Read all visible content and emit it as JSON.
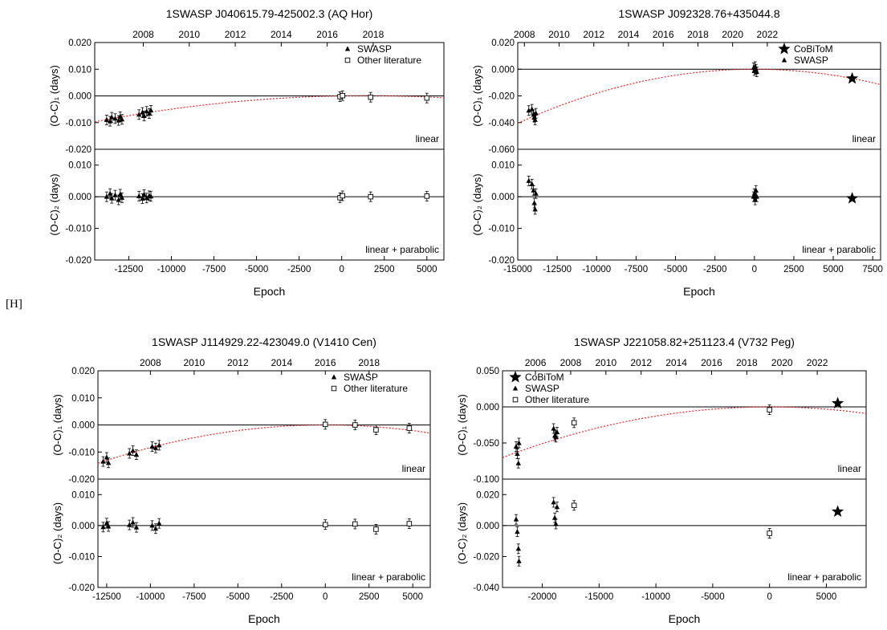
{
  "page": {
    "bracket_label": "[H]"
  },
  "colors": {
    "fit_curve": "#e8262a",
    "axis": "#000000",
    "background": "#ffffff"
  },
  "chart_data": [
    {
      "type": "scatter",
      "title": "1SWASP J040615.79-425002.3   (AQ Hor)",
      "xlabel": "Epoch",
      "xlim": [
        -14500,
        6000
      ],
      "x_ticks": [
        "-12500",
        "-10000",
        "-7500",
        "-5000",
        "-2500",
        "0",
        "2500",
        "5000"
      ],
      "x_tick_values": [
        -12500,
        -10000,
        -7500,
        -5000,
        -2500,
        0,
        2500,
        5000
      ],
      "top_axis_years": [
        "2008",
        "2010",
        "2012",
        "2014",
        "2016",
        "2018"
      ],
      "top_axis_year_epochs": [
        -11650,
        -8950,
        -6250,
        -3550,
        -850,
        1850
      ],
      "legend": [
        "SWASP",
        "Other literature"
      ],
      "legend_symbols": [
        "triangle",
        "square"
      ],
      "legend_position": "top-right",
      "top_panel": {
        "ylabel": "(O-C)₁ (days)",
        "ylim": [
          -0.02,
          0.02
        ],
        "y_ticks": [
          "-0.020",
          "-0.010",
          "0.000",
          "0.010",
          "0.020"
        ],
        "y_tick_values": [
          -0.02,
          -0.01,
          0.0,
          0.01,
          0.02
        ],
        "label": "linear",
        "fit": {
          "a": -3.86e-11,
          "b": 1.1e-07,
          "c": 0.0
        },
        "series": [
          {
            "name": "SWASP",
            "x": [
              -13800,
              -13600,
              -13500,
              -13300,
              -13100,
              -13000,
              -12900,
              -11900,
              -11700,
              -11600,
              -11450,
              -11300,
              -11200
            ],
            "y": [
              -0.009,
              -0.0095,
              -0.008,
              -0.0085,
              -0.0092,
              -0.0078,
              -0.0088,
              -0.007,
              -0.0062,
              -0.0075,
              -0.0058,
              -0.0066,
              -0.0054
            ]
          },
          {
            "name": "Other literature",
            "x": [
              -100,
              50,
              1700,
              5000
            ],
            "y": [
              -0.0003,
              0.0001,
              -0.0005,
              -0.0008
            ]
          }
        ]
      },
      "bottom_panel": {
        "ylabel": "(O-C)₂ (days)",
        "ylim": [
          -0.02,
          0.015
        ],
        "y_ticks": [
          "-0.020",
          "-0.010",
          "0.000",
          "0.010"
        ],
        "y_tick_values": [
          -0.02,
          -0.01,
          0.0,
          0.01
        ],
        "label": "linear + parabolic",
        "series": [
          {
            "name": "SWASP",
            "x": [
              -13800,
              -13600,
              -13500,
              -13300,
              -13100,
              -13000,
              -12900,
              -11900,
              -11700,
              -11600,
              -11450,
              -11300,
              -11200
            ],
            "y": [
              0.0,
              0.001,
              -0.0005,
              0.0005,
              -0.001,
              0.0008,
              -0.0003,
              0.0002,
              -0.0006,
              0.0007,
              -0.0004,
              0.0003,
              0.0001
            ]
          },
          {
            "name": "Other literature",
            "x": [
              -100,
              50,
              1700,
              5000
            ],
            "y": [
              -0.0003,
              0.0003,
              0.0,
              0.0002
            ]
          }
        ]
      }
    },
    {
      "type": "scatter",
      "title": "1SWASP J092328.76+435044.8",
      "xlabel": "Epoch",
      "xlim": [
        -15000,
        8000
      ],
      "x_ticks": [
        "-15000",
        "-12500",
        "-10000",
        "-7500",
        "-5000",
        "-2500",
        "0",
        "2500",
        "5000",
        "7500"
      ],
      "x_tick_values": [
        -15000,
        -12500,
        -10000,
        -7500,
        -5000,
        -2500,
        0,
        2500,
        5000,
        7500
      ],
      "top_axis_years": [
        "2008",
        "2010",
        "2012",
        "2014",
        "2016",
        "2018",
        "2020",
        "2022"
      ],
      "top_axis_year_epochs": [
        -14580,
        -12380,
        -10180,
        -7980,
        -5780,
        -3580,
        -1380,
        820
      ],
      "legend": [
        "CoBiToM",
        "SWASP"
      ],
      "legend_symbols": [
        "star",
        "triangle"
      ],
      "legend_position": "top-right",
      "top_panel": {
        "ylabel": "(O-C)₁ (days)",
        "ylim": [
          -0.06,
          0.02
        ],
        "y_ticks": [
          "-0.060",
          "-0.040",
          "-0.020",
          "0.000",
          "0.020"
        ],
        "y_tick_values": [
          -0.06,
          -0.04,
          -0.02,
          0.0,
          0.02
        ],
        "label": "linear",
        "fit": {
          "a": -1.8e-10,
          "b": 0.0,
          "c": 0.0
        },
        "series": [
          {
            "name": "CoBiToM",
            "x": [
              6200
            ],
            "y": [
              -0.007
            ]
          },
          {
            "name": "SWASP",
            "x": [
              -14300,
              -14100,
              -14000,
              -13950,
              -13900,
              -13850,
              -50,
              0,
              50,
              100,
              150
            ],
            "y": [
              -0.031,
              -0.03,
              -0.034,
              -0.036,
              -0.038,
              -0.033,
              0.001,
              -0.001,
              0.002,
              0.0,
              -0.002
            ]
          }
        ]
      },
      "bottom_panel": {
        "ylabel": "(O-C)₂ (days)",
        "ylim": [
          -0.02,
          0.015
        ],
        "y_ticks": [
          "-0.020",
          "-0.010",
          "0.000",
          "0.010"
        ],
        "y_tick_values": [
          -0.02,
          -0.01,
          0.0,
          0.01
        ],
        "label": "linear + parabolic",
        "series": [
          {
            "name": "CoBiToM",
            "x": [
              6200
            ],
            "y": [
              -0.0005
            ]
          },
          {
            "name": "SWASP",
            "x": [
              -14300,
              -14100,
              -14000,
              -13950,
              -13900,
              -13850,
              -50,
              0,
              50,
              100,
              150
            ],
            "y": [
              0.005,
              0.004,
              0.002,
              -0.002,
              -0.004,
              0.001,
              0.0,
              0.001,
              -0.001,
              0.002,
              0.0
            ]
          }
        ]
      }
    },
    {
      "type": "scatter",
      "title": "1SWASP J114929.22-423049.0   (V1410 Cen)",
      "xlabel": "Epoch",
      "xlim": [
        -13000,
        6000
      ],
      "x_ticks": [
        "-12500",
        "-10000",
        "-7500",
        "-5000",
        "-2500",
        "0",
        "2500",
        "5000"
      ],
      "x_tick_values": [
        -12500,
        -10000,
        -7500,
        -5000,
        -2500,
        0,
        2500,
        5000
      ],
      "top_axis_years": [
        "2008",
        "2010",
        "2012",
        "2014",
        "2016",
        "2018"
      ],
      "top_axis_year_epochs": [
        -10000,
        -7500,
        -5000,
        -2500,
        0,
        2500
      ],
      "legend": [
        "SWASP",
        "Other literature"
      ],
      "legend_symbols": [
        "triangle",
        "square"
      ],
      "legend_position": "top-right",
      "top_panel": {
        "ylabel": "(O-C)₁ (days)",
        "ylim": [
          -0.02,
          0.02
        ],
        "y_ticks": [
          "-0.020",
          "-0.010",
          "0.000",
          "0.010",
          "0.020"
        ],
        "y_tick_values": [
          -0.02,
          -0.01,
          0.0,
          0.01,
          0.02
        ],
        "label": "linear",
        "fit": {
          "a": -8.35e-11,
          "b": 0.0,
          "c": 0.0
        },
        "series": [
          {
            "name": "SWASP",
            "x": [
              -12700,
              -12500,
              -12400,
              -11200,
              -11000,
              -10800,
              -9900,
              -9700,
              -9500
            ],
            "y": [
              -0.0135,
              -0.012,
              -0.014,
              -0.0105,
              -0.0095,
              -0.011,
              -0.008,
              -0.0085,
              -0.0075
            ]
          },
          {
            "name": "Other literature",
            "x": [
              0,
              1700,
              2900,
              4800
            ],
            "y": [
              0.0002,
              0.0,
              -0.0018,
              -0.0012
            ]
          }
        ]
      },
      "bottom_panel": {
        "ylabel": "(O-C)₂ (days)",
        "ylim": [
          -0.02,
          0.015
        ],
        "y_ticks": [
          "-0.020",
          "-0.010",
          "0.000",
          "0.010"
        ],
        "y_tick_values": [
          -0.02,
          -0.01,
          0.0,
          0.01
        ],
        "label": "linear + parabolic",
        "series": [
          {
            "name": "SWASP",
            "x": [
              -12700,
              -12500,
              -12400,
              -11200,
              -11000,
              -10800,
              -9900,
              -9700,
              -9500
            ],
            "y": [
              -0.0005,
              0.0008,
              -0.0003,
              0.0002,
              0.001,
              -0.0006,
              0.0,
              -0.001,
              0.0007
            ]
          },
          {
            "name": "Other literature",
            "x": [
              0,
              1700,
              2900,
              4800
            ],
            "y": [
              0.0003,
              0.0005,
              -0.0012,
              0.0006
            ]
          }
        ]
      }
    },
    {
      "type": "scatter",
      "title": "1SWASP J221058.82+251123.4   (V732 Peg)",
      "xlabel": "Epoch",
      "xlim": [
        -23500,
        8500
      ],
      "x_ticks": [
        "-20000",
        "-15000",
        "-10000",
        "-5000",
        "0",
        "5000"
      ],
      "x_tick_values": [
        -20000,
        -15000,
        -10000,
        -5000,
        0,
        5000
      ],
      "top_axis_years": [
        "2006",
        "2008",
        "2010",
        "2012",
        "2014",
        "2016",
        "2018",
        "2020",
        "2022"
      ],
      "top_axis_year_epochs": [
        -20600,
        -17500,
        -14400,
        -11300,
        -8200,
        -5100,
        -2000,
        1100,
        4200
      ],
      "legend": [
        "CoBiToM",
        "SWASP",
        "Other literature"
      ],
      "legend_symbols": [
        "star",
        "triangle",
        "square"
      ],
      "legend_position": "top-left",
      "top_panel": {
        "ylabel": "(O-C)₁ (days)",
        "ylim": [
          -0.1,
          0.05
        ],
        "y_ticks": [
          "-0.100",
          "-0.050",
          "0.000",
          "0.050"
        ],
        "y_tick_values": [
          -0.1,
          -0.05,
          0.0,
          0.05
        ],
        "label": "linear",
        "fit": {
          "a": -1.27e-10,
          "b": 0.0,
          "c": 0.0
        },
        "series": [
          {
            "name": "CoBiToM",
            "x": [
              6000
            ],
            "y": [
              0.005
            ]
          },
          {
            "name": "SWASP",
            "x": [
              -22300,
              -22200,
              -22100,
              -22050,
              -19000,
              -18900,
              -18800,
              -18700
            ],
            "y": [
              -0.055,
              -0.065,
              -0.078,
              -0.05,
              -0.03,
              -0.04,
              -0.042,
              -0.035
            ]
          },
          {
            "name": "Other literature",
            "x": [
              -17200,
              0
            ],
            "y": [
              -0.022,
              -0.004
            ]
          }
        ]
      },
      "bottom_panel": {
        "ylabel": "(O-C)₂ (days)",
        "ylim": [
          -0.04,
          0.03
        ],
        "y_ticks": [
          "-0.040",
          "-0.020",
          "0.000",
          "0.020"
        ],
        "y_tick_values": [
          -0.04,
          -0.02,
          0.0,
          0.02
        ],
        "label": "linear + parabolic",
        "series": [
          {
            "name": "CoBiToM",
            "x": [
              6000
            ],
            "y": [
              0.009
            ]
          },
          {
            "name": "SWASP",
            "x": [
              -22300,
              -22200,
              -22100,
              -22050,
              -19000,
              -18900,
              -18800,
              -18700
            ],
            "y": [
              0.004,
              -0.004,
              -0.015,
              -0.023,
              0.015,
              0.005,
              0.001,
              0.012
            ]
          },
          {
            "name": "Other literature",
            "x": [
              -17200,
              0
            ],
            "y": [
              0.013,
              -0.005
            ]
          }
        ]
      }
    }
  ]
}
